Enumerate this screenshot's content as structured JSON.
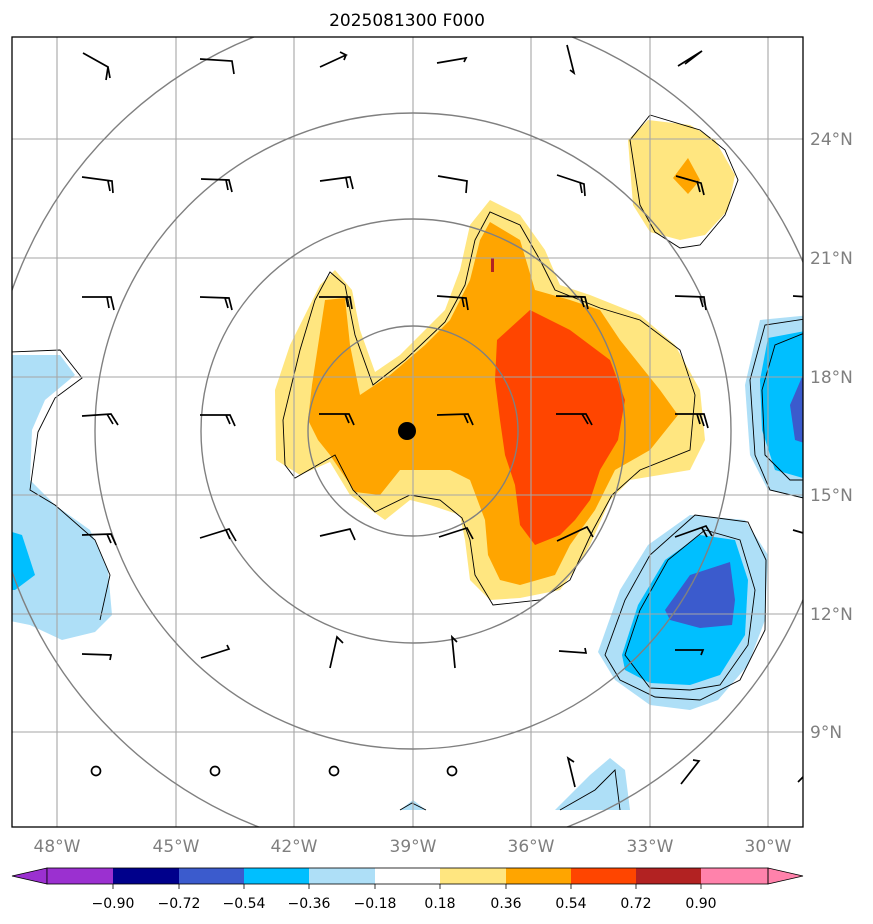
{
  "title": "2025081300 F000",
  "map": {
    "lat_labels": [
      "24°N",
      "21°N",
      "18°N",
      "15°N",
      "12°N",
      "9°N"
    ],
    "lon_labels": [
      "48°W",
      "45°W",
      "42°W",
      "39°W",
      "36°W",
      "33°W",
      "30°W"
    ],
    "center_marker": {
      "lon": -39.1,
      "lat": 16.6
    }
  },
  "colorbar": {
    "tick_labels": [
      "−0.90",
      "−0.72",
      "−0.54",
      "−0.36",
      "−0.18",
      "0.18",
      "0.36",
      "0.54",
      "0.72",
      "0.90"
    ],
    "colors": {
      "under": "#9b30d0",
      "bins": [
        "#00008b",
        "#3b5bcd",
        "#00bfff",
        "#aedff7",
        "#ffffff",
        "#ffe680",
        "#ffa500",
        "#ff4500",
        "#b22222"
      ],
      "over": "#ff82ab"
    }
  },
  "fill_colors": {
    "light_yellow": "#ffe680",
    "orange": "#ffa500",
    "red_orange": "#ff4500",
    "light_blue": "#aedff7",
    "deep_sky": "#00bfff",
    "royal_blue": "#3b5bcd"
  }
}
